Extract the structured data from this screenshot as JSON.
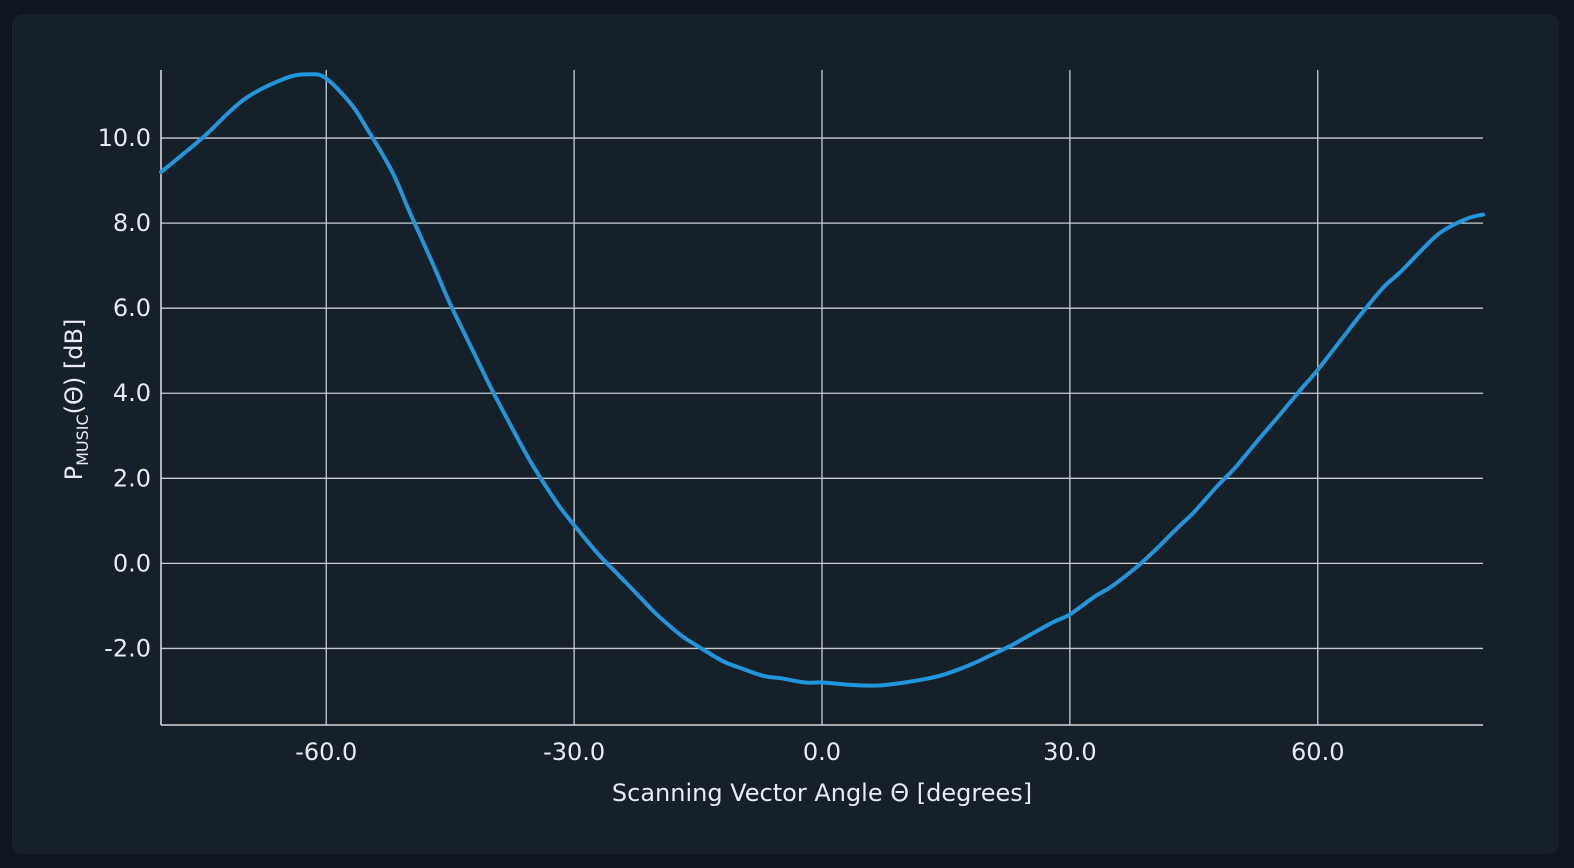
{
  "chart_data": {
    "type": "line",
    "xlabel": "Scanning Vector Angle Θ [degrees]",
    "ylabel": {
      "main": "P",
      "subscript": "MUSIC",
      "suffix": "(Θ) [dB]"
    },
    "xlim": [
      -80,
      80
    ],
    "ylim": [
      -3.8,
      11.6
    ],
    "xticks": [
      -60,
      -30,
      0,
      30,
      60
    ],
    "xtick_labels": [
      "-60.0",
      "-30.0",
      "0.0",
      "30.0",
      "60.0"
    ],
    "yticks": [
      -2,
      0,
      2,
      4,
      6,
      8,
      10
    ],
    "ytick_labels": [
      "-2.0",
      "0.0",
      "2.0",
      "4.0",
      "6.0",
      "8.0",
      "10.0"
    ],
    "grid": true,
    "series": [
      {
        "color": "#2196dc",
        "x": [
          -80,
          -75,
          -70,
          -65,
          -62,
          -60,
          -57,
          -55,
          -52,
          -50,
          -47,
          -45,
          -42,
          -40,
          -37,
          -35,
          -32,
          -30,
          -27,
          -25,
          -22,
          -20,
          -17,
          -15,
          -12,
          -10,
          -7,
          -5,
          -2,
          0,
          3,
          5,
          7,
          10,
          13,
          15,
          18,
          20,
          23,
          25,
          28,
          30,
          33,
          35,
          38,
          40,
          43,
          45,
          48,
          50,
          53,
          55,
          58,
          60,
          63,
          65,
          68,
          70,
          73,
          75,
          78,
          80
        ],
        "y": [
          9.2,
          10.0,
          10.9,
          11.4,
          11.5,
          11.4,
          10.8,
          10.2,
          9.2,
          8.3,
          7.0,
          6.1,
          4.9,
          4.1,
          3.0,
          2.3,
          1.4,
          0.9,
          0.2,
          -0.2,
          -0.8,
          -1.2,
          -1.7,
          -1.95,
          -2.3,
          -2.45,
          -2.65,
          -2.7,
          -2.8,
          -2.8,
          -2.85,
          -2.87,
          -2.87,
          -2.8,
          -2.7,
          -2.6,
          -2.38,
          -2.2,
          -1.92,
          -1.7,
          -1.38,
          -1.2,
          -0.78,
          -0.55,
          -0.1,
          0.25,
          0.83,
          1.2,
          1.85,
          2.25,
          2.95,
          3.4,
          4.1,
          4.55,
          5.3,
          5.8,
          6.5,
          6.85,
          7.45,
          7.8,
          8.1,
          8.2
        ]
      }
    ]
  }
}
